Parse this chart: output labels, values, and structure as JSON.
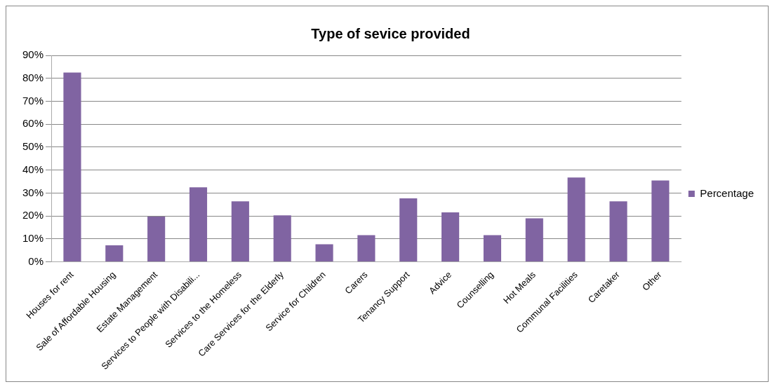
{
  "chart_data": {
    "type": "bar",
    "title": "Type of sevice provided",
    "categories": [
      "Houses for rent",
      "Sale of Affordable Housing",
      "Estate Management",
      "Services to People with Disabili...",
      "Services to the Homeless",
      "Care Services for the Elderly",
      "Service for Children",
      "Carers",
      "Tenancy Support",
      "Advice",
      "Counselling",
      "Hot Meals",
      "Communal Facilities",
      "Caretaker",
      "Other"
    ],
    "series": [
      {
        "name": "Percentage",
        "color": "#8064a2",
        "values": [
          82.5,
          7.2,
          19.7,
          32.5,
          26.4,
          20.3,
          7.7,
          11.6,
          27.7,
          21.6,
          11.6,
          19.0,
          36.8,
          26.4,
          35.5
        ]
      }
    ],
    "ylim": [
      0,
      90
    ],
    "yticks": [
      {
        "value": 0,
        "label": "0%"
      },
      {
        "value": 10,
        "label": "10%"
      },
      {
        "value": 20,
        "label": "20%"
      },
      {
        "value": 30,
        "label": "30%"
      },
      {
        "value": 40,
        "label": "40%"
      },
      {
        "value": 50,
        "label": "50%"
      },
      {
        "value": 60,
        "label": "60%"
      },
      {
        "value": 70,
        "label": "70%"
      },
      {
        "value": 80,
        "label": "80%"
      },
      {
        "value": 90,
        "label": "90%"
      }
    ],
    "grid": "y",
    "legend": "right"
  }
}
